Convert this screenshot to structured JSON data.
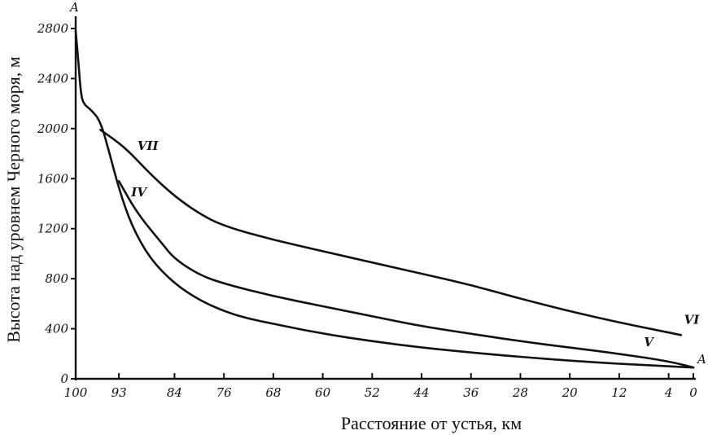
{
  "chart_data": {
    "type": "line",
    "xlabel": "Расстояние от устья, км",
    "ylabel": "Высота над уровнем Черного моря, м",
    "xlim": [
      100,
      0
    ],
    "ylim": [
      0,
      2800
    ],
    "x_ticks": [
      "100",
      "93",
      "84",
      "76",
      "68",
      "60",
      "52",
      "44",
      "36",
      "28",
      "20",
      "12",
      "4",
      "0"
    ],
    "y_ticks": [
      "0",
      "400",
      "800",
      "1200",
      "1600",
      "2000",
      "2400",
      "2800"
    ],
    "endpoint_labels": {
      "top": "A",
      "bottom": "A"
    },
    "series": [
      {
        "name": "",
        "label": "",
        "points": [
          [
            100,
            2780
          ],
          [
            99.5,
            2500
          ],
          [
            99.2,
            2300
          ],
          [
            98.8,
            2200
          ],
          [
            97.5,
            2150
          ],
          [
            96,
            2060
          ],
          [
            94.5,
            1800
          ],
          [
            93,
            1520
          ],
          [
            91,
            1230
          ],
          [
            88,
            960
          ],
          [
            84,
            760
          ],
          [
            80,
            630
          ],
          [
            76,
            540
          ],
          [
            72,
            480
          ],
          [
            68,
            440
          ],
          [
            60,
            360
          ],
          [
            52,
            300
          ],
          [
            44,
            250
          ],
          [
            36,
            210
          ],
          [
            28,
            175
          ],
          [
            20,
            145
          ],
          [
            12,
            120
          ],
          [
            4,
            100
          ],
          [
            0,
            90
          ]
        ]
      },
      {
        "name": "",
        "label": "V",
        "points": [
          [
            93,
            1580
          ],
          [
            90,
            1320
          ],
          [
            86,
            1080
          ],
          [
            84,
            960
          ],
          [
            80,
            830
          ],
          [
            76,
            760
          ],
          [
            68,
            660
          ],
          [
            60,
            580
          ],
          [
            52,
            500
          ],
          [
            44,
            420
          ],
          [
            36,
            360
          ],
          [
            28,
            300
          ],
          [
            20,
            250
          ],
          [
            12,
            200
          ],
          [
            4,
            140
          ],
          [
            0,
            90
          ]
        ]
      },
      {
        "name": "",
        "label": "VI",
        "points": [
          [
            96,
            1990
          ],
          [
            92,
            1850
          ],
          [
            88,
            1640
          ],
          [
            84,
            1460
          ],
          [
            80,
            1320
          ],
          [
            76,
            1220
          ],
          [
            68,
            1110
          ],
          [
            60,
            1020
          ],
          [
            52,
            930
          ],
          [
            44,
            840
          ],
          [
            36,
            750
          ],
          [
            28,
            640
          ],
          [
            20,
            540
          ],
          [
            12,
            450
          ],
          [
            6,
            390
          ],
          [
            2,
            350
          ]
        ]
      }
    ],
    "curve_labels": [
      {
        "text": "VII",
        "x": 90,
        "y": 1830
      },
      {
        "text": "IV",
        "x": 91,
        "y": 1460
      },
      {
        "text": "VI",
        "x": 1.5,
        "y": 440
      },
      {
        "text": "V",
        "x": 8,
        "y": 260
      }
    ]
  }
}
